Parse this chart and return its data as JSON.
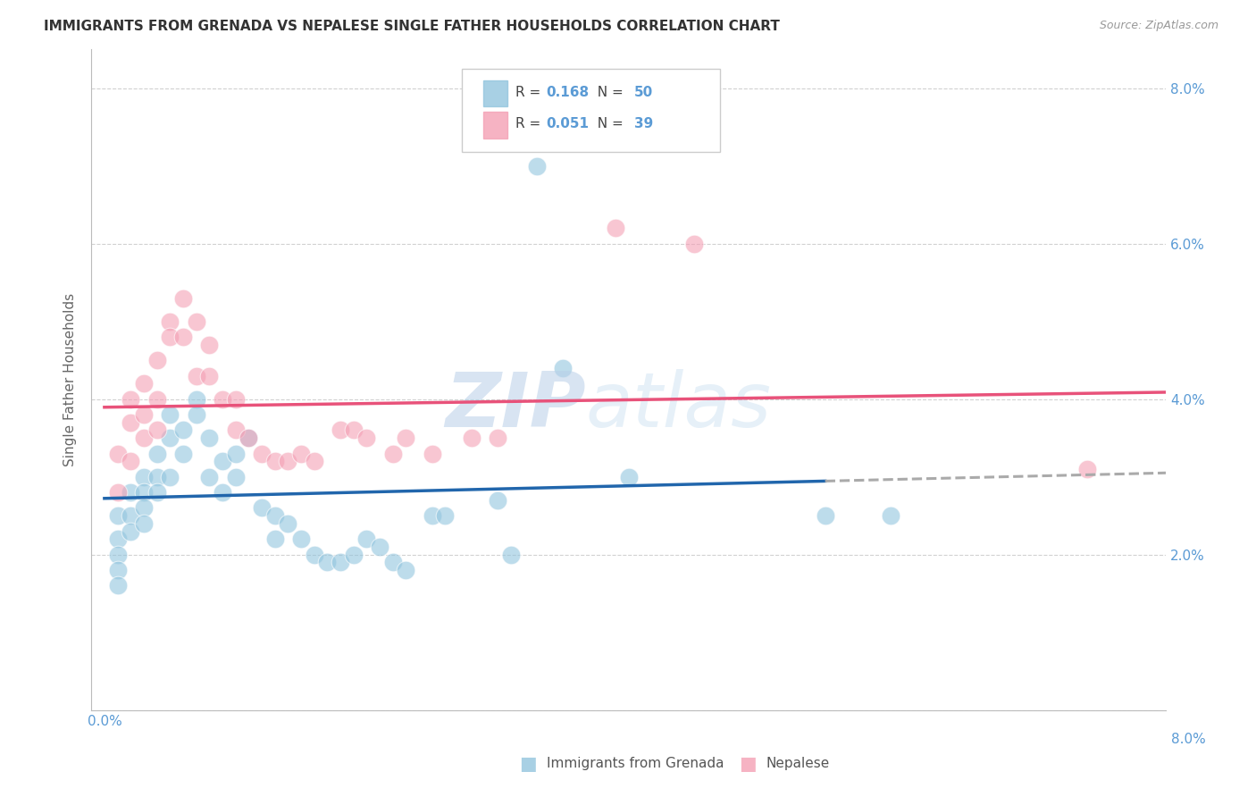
{
  "title": "IMMIGRANTS FROM GRENADA VS NEPALESE SINGLE FATHER HOUSEHOLDS CORRELATION CHART",
  "source": "Source: ZipAtlas.com",
  "ylabel": "Single Father Households",
  "color_blue": "#92c5de",
  "color_pink": "#f4a0b5",
  "color_blue_line": "#2166ac",
  "color_pink_line": "#e8527a",
  "color_axis": "#5b9bd5",
  "background_color": "#ffffff",
  "watermark_zip": "ZIP",
  "watermark_atlas": "atlas",
  "ylim": [
    0.0,
    0.085
  ],
  "xlim": [
    -0.001,
    0.081
  ],
  "blue_scatter_x": [
    0.001,
    0.001,
    0.001,
    0.001,
    0.001,
    0.002,
    0.002,
    0.002,
    0.003,
    0.003,
    0.003,
    0.003,
    0.004,
    0.004,
    0.004,
    0.005,
    0.005,
    0.005,
    0.006,
    0.006,
    0.007,
    0.007,
    0.008,
    0.008,
    0.009,
    0.009,
    0.01,
    0.01,
    0.011,
    0.012,
    0.013,
    0.013,
    0.014,
    0.015,
    0.016,
    0.017,
    0.018,
    0.019,
    0.02,
    0.021,
    0.022,
    0.023,
    0.025,
    0.026,
    0.03,
    0.031,
    0.035,
    0.04,
    0.055,
    0.06
  ],
  "blue_scatter_y": [
    0.025,
    0.022,
    0.02,
    0.018,
    0.016,
    0.028,
    0.025,
    0.023,
    0.03,
    0.028,
    0.026,
    0.024,
    0.033,
    0.03,
    0.028,
    0.038,
    0.035,
    0.03,
    0.036,
    0.033,
    0.04,
    0.038,
    0.035,
    0.03,
    0.032,
    0.028,
    0.033,
    0.03,
    0.035,
    0.026,
    0.025,
    0.022,
    0.024,
    0.022,
    0.02,
    0.019,
    0.019,
    0.02,
    0.022,
    0.021,
    0.019,
    0.018,
    0.025,
    0.025,
    0.027,
    0.02,
    0.044,
    0.03,
    0.025,
    0.025
  ],
  "blue_outlier_x": [
    0.033
  ],
  "blue_outlier_y": [
    0.07
  ],
  "pink_scatter_x": [
    0.001,
    0.001,
    0.002,
    0.002,
    0.002,
    0.003,
    0.003,
    0.003,
    0.004,
    0.004,
    0.004,
    0.005,
    0.005,
    0.006,
    0.006,
    0.007,
    0.007,
    0.008,
    0.008,
    0.009,
    0.01,
    0.01,
    0.011,
    0.012,
    0.013,
    0.014,
    0.015,
    0.016,
    0.018,
    0.019,
    0.02,
    0.022,
    0.023,
    0.025,
    0.028,
    0.03,
    0.045,
    0.075
  ],
  "pink_scatter_y": [
    0.033,
    0.028,
    0.04,
    0.037,
    0.032,
    0.042,
    0.038,
    0.035,
    0.045,
    0.04,
    0.036,
    0.05,
    0.048,
    0.053,
    0.048,
    0.05,
    0.043,
    0.047,
    0.043,
    0.04,
    0.04,
    0.036,
    0.035,
    0.033,
    0.032,
    0.032,
    0.033,
    0.032,
    0.036,
    0.036,
    0.035,
    0.033,
    0.035,
    0.033,
    0.035,
    0.035,
    0.06,
    0.031
  ],
  "pink_outlier_x": [
    0.039
  ],
  "pink_outlier_y": [
    0.062
  ]
}
